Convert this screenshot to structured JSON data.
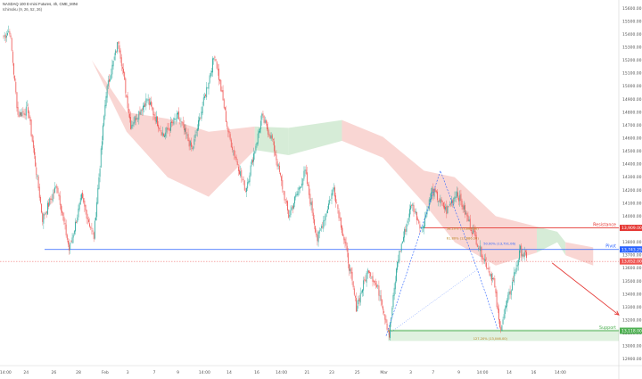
{
  "header": {
    "title": "NASDAQ 100 E-mini Futures, 4h, CME_MINI",
    "indicator": "Ichimoku (9, 26, 52, 26)"
  },
  "colors": {
    "up": "#26a69a",
    "down": "#ef5350",
    "support": "#4caf50",
    "resistance": "#e53935",
    "pivot": "#2962ff",
    "current_price": "#ef5350",
    "cloud_bear": "#f7c8c4",
    "cloud_bull": "#c8e6c9"
  },
  "chart_data": {
    "type": "candlestick",
    "ylim": [
      12850,
      15650
    ],
    "y_ticks": [
      12900,
      13000,
      13100,
      13200,
      13300,
      13400,
      13500,
      13600,
      13700,
      13800,
      13900,
      14000,
      14100,
      14200,
      14300,
      14400,
      14500,
      14600,
      14700,
      14800,
      14900,
      15000,
      15100,
      15200,
      15300,
      15400,
      15500,
      15600
    ],
    "x_ticks": [
      "14:00",
      "24",
      "26",
      "28",
      "Feb",
      "3",
      "7",
      "9",
      "14:00",
      "14",
      "16",
      "14:00",
      "21",
      "23",
      "25",
      "Mar",
      "3",
      "7",
      "9",
      "14:00",
      "14",
      "16",
      "14:00"
    ],
    "x_tick_index": [
      2,
      22,
      49,
      73,
      99,
      121,
      147,
      170,
      196,
      220,
      247,
      271,
      296,
      320,
      345,
      371,
      397,
      419,
      444,
      467,
      493,
      517,
      543
    ],
    "n_bars": 560,
    "pivots": [
      {
        "i": 0,
        "p": 15380
      },
      {
        "i": 6,
        "p": 15430
      },
      {
        "i": 14,
        "p": 14780
      },
      {
        "i": 24,
        "p": 14820
      },
      {
        "i": 38,
        "p": 13980
      },
      {
        "i": 52,
        "p": 14240
      },
      {
        "i": 64,
        "p": 13740
      },
      {
        "i": 76,
        "p": 14140
      },
      {
        "i": 88,
        "p": 13840
      },
      {
        "i": 100,
        "p": 14950
      },
      {
        "i": 112,
        "p": 15350
      },
      {
        "i": 124,
        "p": 14700
      },
      {
        "i": 140,
        "p": 14900
      },
      {
        "i": 156,
        "p": 14620
      },
      {
        "i": 170,
        "p": 14770
      },
      {
        "i": 184,
        "p": 14510
      },
      {
        "i": 206,
        "p": 15250
      },
      {
        "i": 220,
        "p": 14610
      },
      {
        "i": 236,
        "p": 14200
      },
      {
        "i": 252,
        "p": 14760
      },
      {
        "i": 262,
        "p": 14590
      },
      {
        "i": 278,
        "p": 14000
      },
      {
        "i": 294,
        "p": 14340
      },
      {
        "i": 306,
        "p": 13820
      },
      {
        "i": 322,
        "p": 14220
      },
      {
        "i": 336,
        "p": 13660
      },
      {
        "i": 344,
        "p": 13300
      },
      {
        "i": 356,
        "p": 13600
      },
      {
        "i": 368,
        "p": 13380
      },
      {
        "i": 376,
        "p": 13080
      },
      {
        "i": 384,
        "p": 13650
      },
      {
        "i": 398,
        "p": 14100
      },
      {
        "i": 408,
        "p": 13900
      },
      {
        "i": 418,
        "p": 14200
      },
      {
        "i": 432,
        "p": 14040
      },
      {
        "i": 442,
        "p": 14190
      },
      {
        "i": 454,
        "p": 13950
      },
      {
        "i": 466,
        "p": 13720
      },
      {
        "i": 478,
        "p": 13500
      },
      {
        "i": 484,
        "p": 13130
      },
      {
        "i": 494,
        "p": 13420
      },
      {
        "i": 504,
        "p": 13740
      },
      {
        "i": 510,
        "p": 13680
      }
    ],
    "ichimoku_cloud": [
      {
        "i": 86,
        "a": 15200,
        "b": 15200,
        "c": "bear"
      },
      {
        "i": 120,
        "a": 14650,
        "b": 14800,
        "c": "bear"
      },
      {
        "i": 160,
        "a": 14300,
        "b": 14750,
        "c": "bear"
      },
      {
        "i": 200,
        "a": 14150,
        "b": 14650,
        "c": "bear"
      },
      {
        "i": 245,
        "a": 14510,
        "b": 14690,
        "c": "bull"
      },
      {
        "i": 278,
        "a": 14470,
        "b": 14680,
        "c": "bull"
      },
      {
        "i": 330,
        "a": 14580,
        "b": 14740,
        "c": "bear"
      },
      {
        "i": 370,
        "a": 14450,
        "b": 14610,
        "c": "bear"
      },
      {
        "i": 410,
        "a": 14100,
        "b": 14350,
        "c": "bear"
      },
      {
        "i": 440,
        "a": 13800,
        "b": 14300,
        "c": "bear"
      },
      {
        "i": 480,
        "a": 13620,
        "b": 14000,
        "c": "bear"
      },
      {
        "i": 520,
        "a": 13720,
        "b": 13920,
        "c": "bull"
      },
      {
        "i": 540,
        "a": 13800,
        "b": 13880,
        "c": "bull"
      },
      {
        "i": 548,
        "a": 13700,
        "b": 13800,
        "c": "bear"
      },
      {
        "i": 575,
        "a": 13620,
        "b": 13760,
        "c": "bear"
      }
    ],
    "fib_pattern": {
      "points": [
        {
          "i": 373,
          "p": 13080
        },
        {
          "i": 426,
          "p": 14350
        },
        {
          "i": 462,
          "p": 13590
        },
        {
          "i": 482,
          "p": 13130
        }
      ],
      "labels": [
        "50.00% (13,791.06)",
        "38.20% (13,889.06)",
        "61.80% (13,686.10)",
        "127.20% (13,046.00)"
      ]
    },
    "levels": [
      {
        "name": "Resistance",
        "price": 13910,
        "value_label": "13,909.00",
        "color": "resistance",
        "from": 410
      },
      {
        "name": "Pivot",
        "price": 13744,
        "value_label": "13,743.25",
        "color": "pivot",
        "from": 40
      },
      {
        "name": "Support",
        "price": 13118,
        "value_label": "13,118.00",
        "color": "support",
        "from": 375
      }
    ],
    "support_zone": [
      13040,
      13130
    ],
    "current_price": {
      "price": 13652,
      "label": "13,652.00"
    },
    "projection_arrow": {
      "from_i": 535,
      "from_p": 13640,
      "to_i": 600,
      "to_p": 13240
    }
  }
}
